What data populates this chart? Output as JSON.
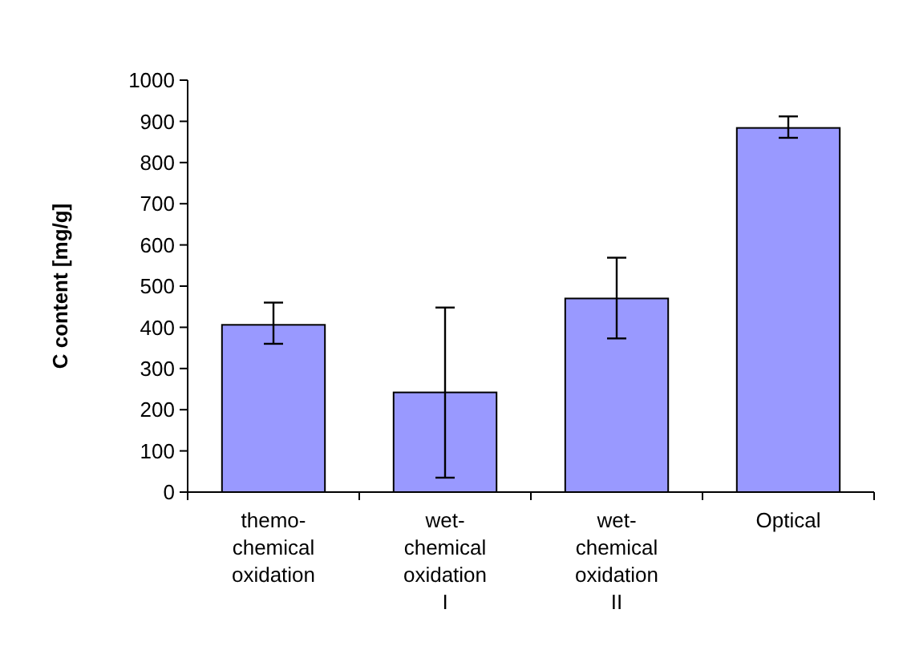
{
  "chart_data": {
    "type": "bar",
    "ylabel": "C content [mg/g]",
    "categories": [
      "themo-chemical oxidation",
      "wet-chemical oxidation I",
      "wet-chemical oxidation II",
      "Optical"
    ],
    "values": [
      406,
      242,
      470,
      884
    ],
    "errors": [
      [
        360,
        460
      ],
      [
        35,
        448
      ],
      [
        373,
        569
      ],
      [
        860,
        912
      ]
    ],
    "color": "#9999ff",
    "ylim": [
      0,
      1000
    ],
    "yticks": [
      0,
      100,
      200,
      300,
      400,
      500,
      600,
      700,
      800,
      900,
      1000
    ],
    "grid": false
  }
}
